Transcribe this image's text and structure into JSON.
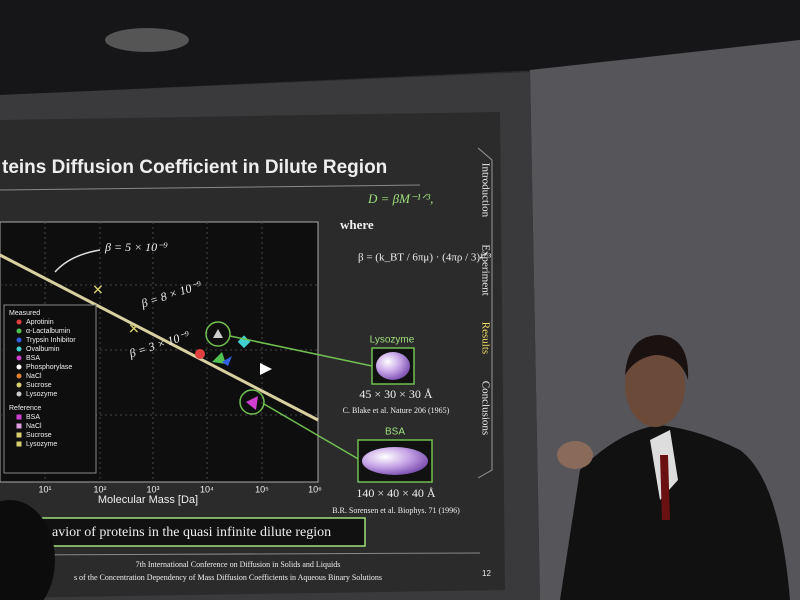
{
  "slide": {
    "title": "teins Diffusion Coefficient in Dilute Region",
    "formula": "D = βM⁻¹ᐟ³,",
    "where": "where",
    "beta_formula": "β = (k_BT / 6πμ) · (4πρ / 3)¹ᐟ³",
    "plot": {
      "beta_labels": [
        "β = 5 × 10⁻⁹",
        "β = 8 × 10⁻⁹",
        "β = 3 × 10⁻⁹"
      ],
      "x_label": "Molecular Mass [Da]",
      "x_ticks": [
        "10¹",
        "10²",
        "10³",
        "10⁴",
        "10⁵",
        "10⁶"
      ],
      "legend": {
        "measured_title": "Measured",
        "measured": [
          "Aprotinin",
          "α-Lactalbumin",
          "Trypsin Inhibitor",
          "Ovalbumin",
          "BSA",
          "Phosphorylase",
          "NaCl",
          "Sucrose",
          "Lysozyme"
        ],
        "reference_title": "Reference",
        "reference": [
          "BSA",
          "NaCl",
          "Sucrose",
          "Lysozyme"
        ]
      }
    },
    "lysozyme": {
      "name": "Lysozyme",
      "size": "45 × 30 × 30 Å",
      "citation": "C. Blake et al. Nature 206 (1965)"
    },
    "bsa": {
      "name": "BSA",
      "size": "140 × 40 × 40 Å",
      "citation": "B.R. Sorensen et al. Biophys. 71 (1996)"
    },
    "conclusion": "avior of proteins in the quasi infinite dilute region",
    "tabs": [
      "Introduction",
      "Experiment",
      "Results",
      "Conclusions"
    ],
    "footer": [
      "7th International Conference on Diffusion in Solids and Liquids",
      "s of the Concentration Dependency of Mass Diffusion Coefficients in Aqueous Binary Solutions"
    ],
    "page_number": "12"
  }
}
